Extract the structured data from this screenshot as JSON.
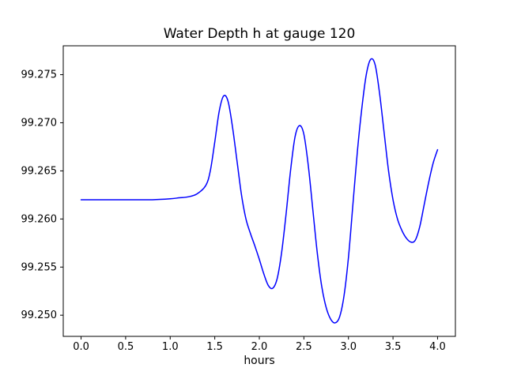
{
  "chart_data": {
    "type": "line",
    "title": "Water Depth h at gauge 120",
    "xlabel": "hours",
    "ylabel": "",
    "line_color": "#0000ff",
    "axis_color": "#000000",
    "grid": false,
    "xlim": [
      -0.2,
      4.2
    ],
    "ylim": [
      99.2478,
      99.278
    ],
    "xticks": [
      0.0,
      0.5,
      1.0,
      1.5,
      2.0,
      2.5,
      3.0,
      3.5,
      4.0
    ],
    "xtick_labels": [
      "0.0",
      "0.5",
      "1.0",
      "1.5",
      "2.0",
      "2.5",
      "3.0",
      "3.5",
      "4.0"
    ],
    "yticks": [
      99.25,
      99.255,
      99.26,
      99.265,
      99.27,
      99.275
    ],
    "ytick_labels": [
      "99.250",
      "99.255",
      "99.260",
      "99.265",
      "99.270",
      "99.275"
    ],
    "x": [
      0.0,
      0.2,
      0.4,
      0.6,
      0.8,
      1.0,
      1.1,
      1.2,
      1.3,
      1.4,
      1.45,
      1.5,
      1.55,
      1.6,
      1.65,
      1.7,
      1.75,
      1.8,
      1.85,
      1.9,
      1.95,
      2.0,
      2.05,
      2.1,
      2.15,
      2.2,
      2.25,
      2.3,
      2.35,
      2.4,
      2.45,
      2.5,
      2.55,
      2.6,
      2.65,
      2.7,
      2.75,
      2.8,
      2.85,
      2.9,
      2.95,
      3.0,
      3.05,
      3.1,
      3.15,
      3.2,
      3.25,
      3.3,
      3.35,
      3.4,
      3.45,
      3.5,
      3.55,
      3.6,
      3.65,
      3.7,
      3.75,
      3.8,
      3.85,
      3.9,
      3.95,
      4.0
    ],
    "y": [
      99.262,
      99.262,
      99.262,
      99.262,
      99.262,
      99.2621,
      99.2622,
      99.2623,
      99.2626,
      99.2635,
      99.265,
      99.268,
      99.2712,
      99.2728,
      99.2722,
      99.2695,
      99.266,
      99.2625,
      99.26,
      99.2585,
      99.2572,
      99.2558,
      99.2543,
      99.2531,
      99.2528,
      99.2538,
      99.2565,
      99.2605,
      99.265,
      99.2685,
      99.2697,
      99.2688,
      99.2655,
      99.261,
      99.2565,
      99.253,
      99.2508,
      99.2496,
      99.2492,
      99.2498,
      99.252,
      99.256,
      99.2615,
      99.267,
      99.2715,
      99.275,
      99.2766,
      99.276,
      99.273,
      99.269,
      99.265,
      99.262,
      99.26,
      99.2588,
      99.258,
      99.2576,
      99.2578,
      99.2592,
      99.2615,
      99.2638,
      99.2658,
      99.2672
    ]
  }
}
